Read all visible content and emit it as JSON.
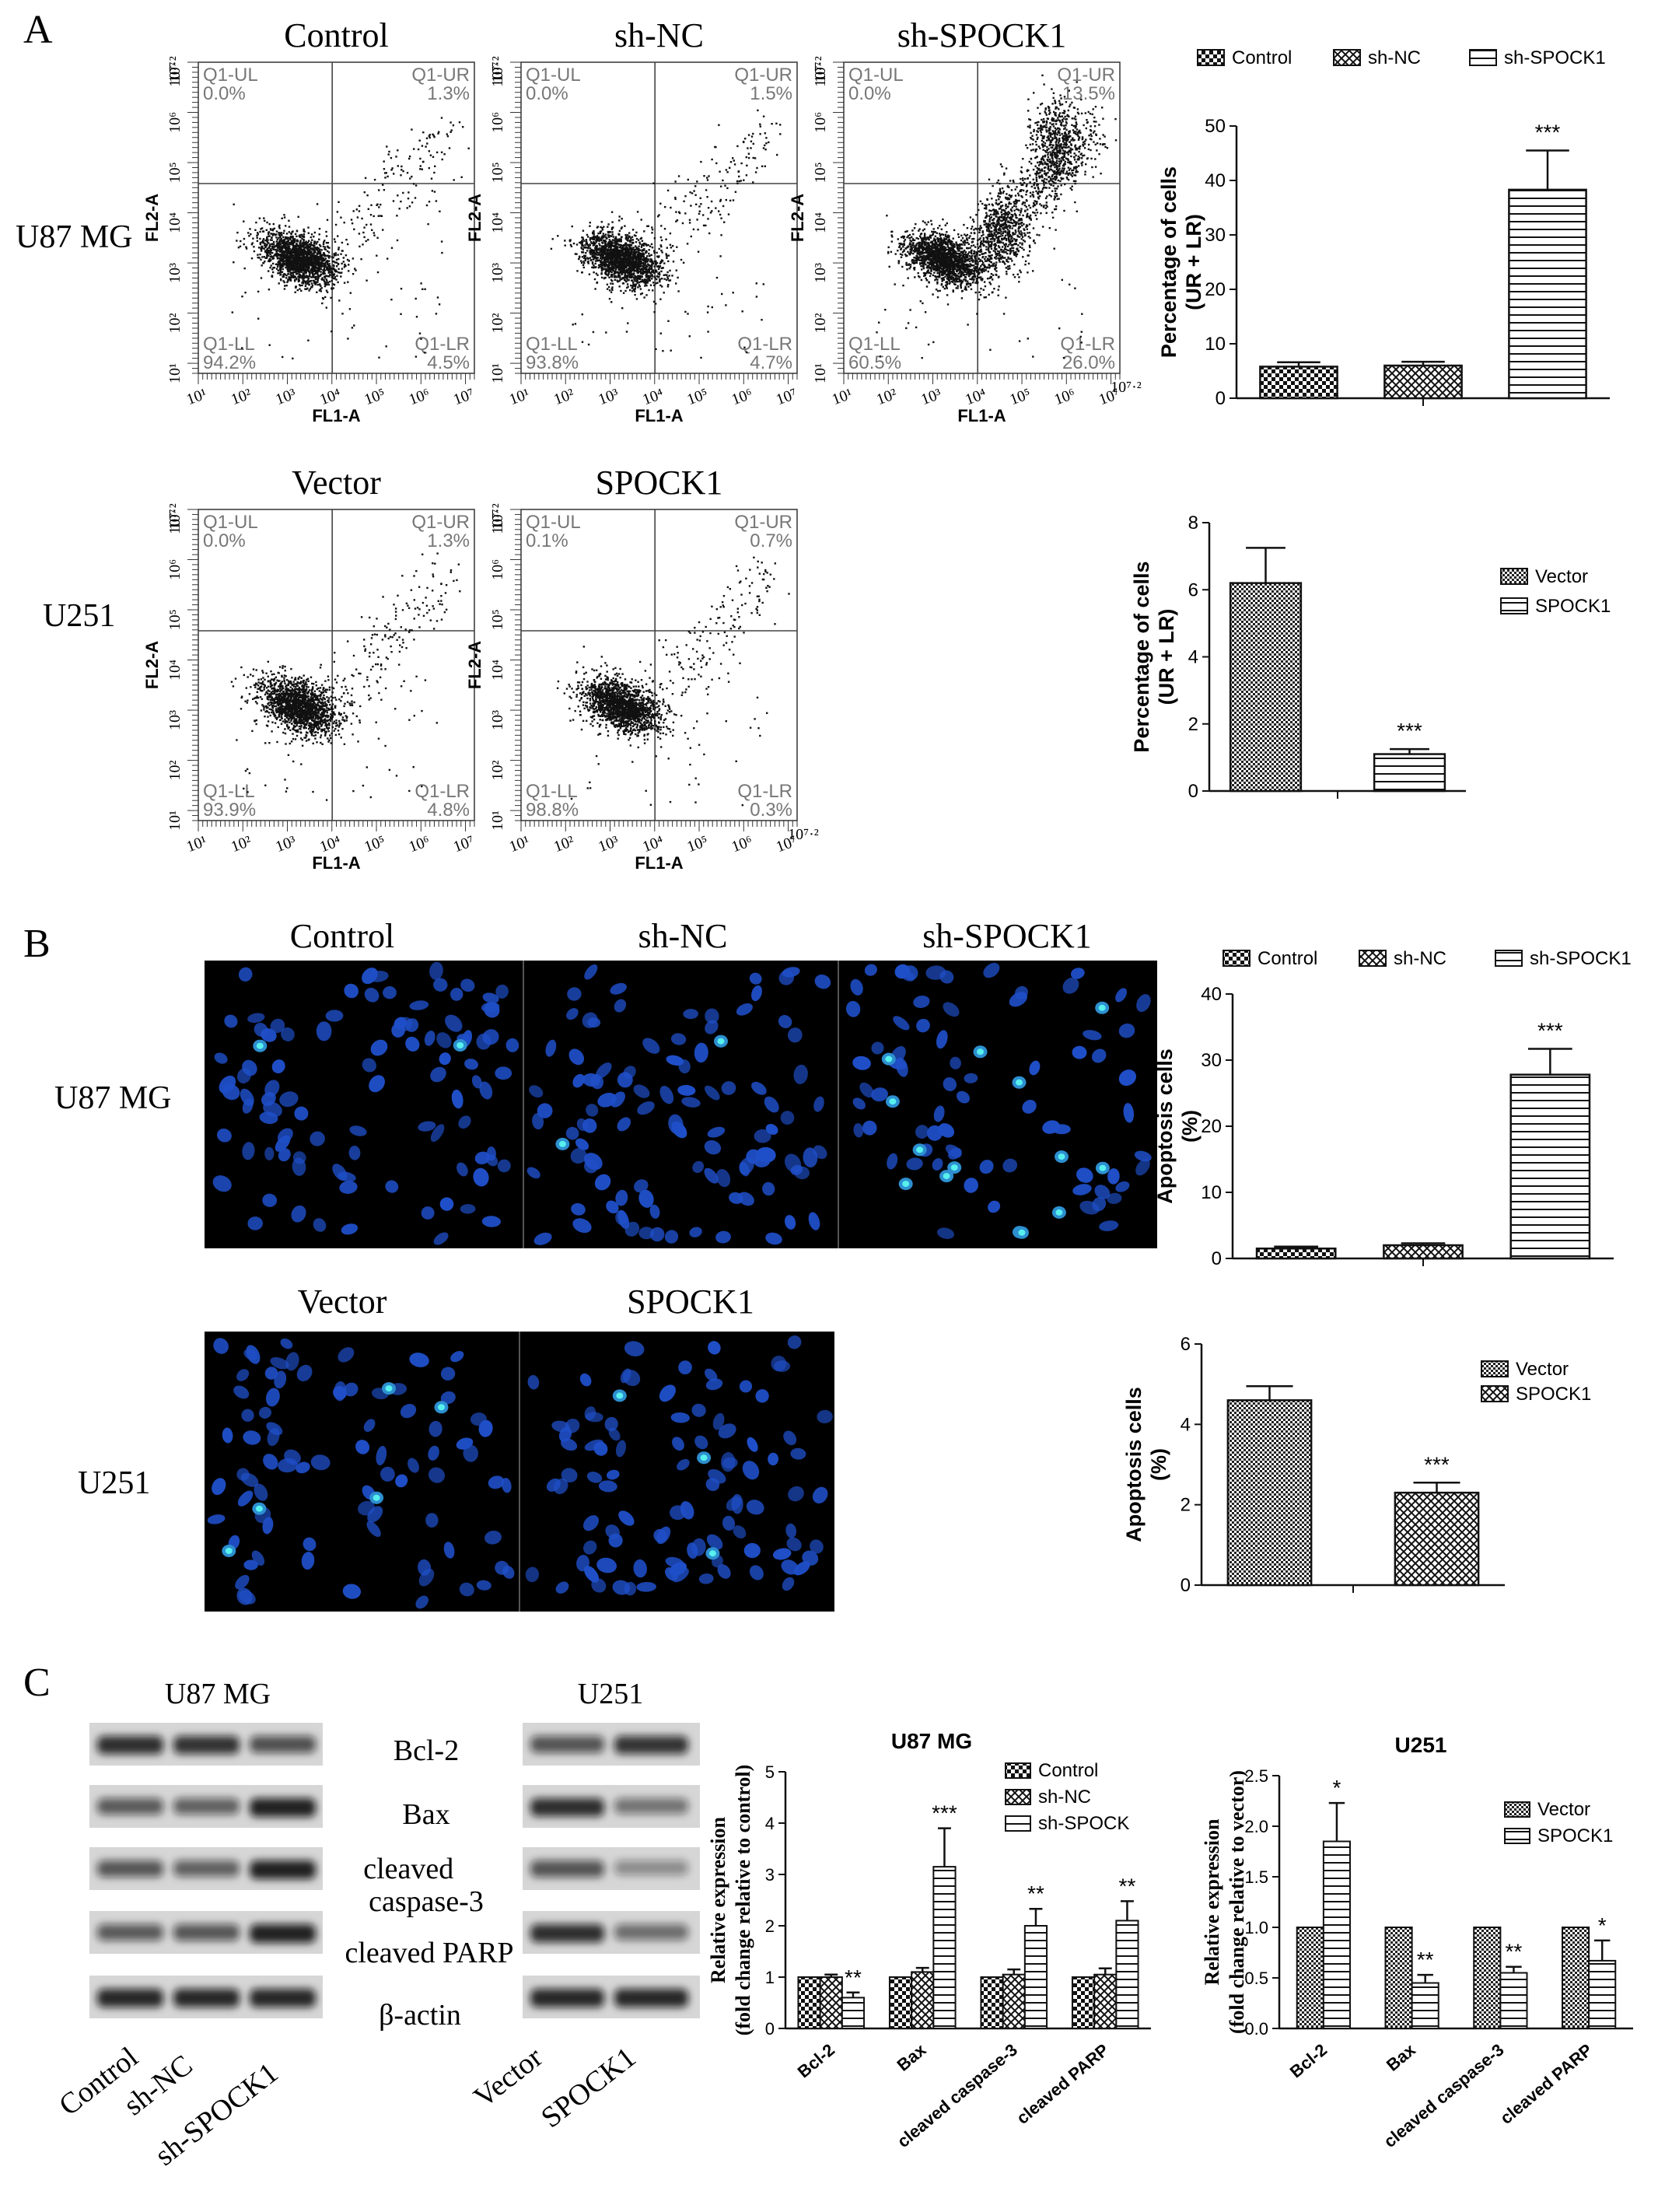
{
  "colors": {
    "ink": "#111111",
    "nucleus": "#1f4fc8",
    "apoptotic": "#57f0ee",
    "micro_bg": "#000000",
    "bar_fill": "#ffffff"
  },
  "panel_labels": [
    "A",
    "B",
    "C"
  ],
  "panelA": {
    "row_labels": [
      "U87 MG",
      "U251"
    ],
    "plot_titles": [
      "Control",
      "sh-NC",
      "sh-SPOCK1",
      "Vector",
      "SPOCK1"
    ],
    "axis": {
      "x_label": "FL1-A",
      "y_label": "FL2-A",
      "x_ticks": [
        "10¹",
        "10²",
        "10³",
        "10⁴",
        "10⁵",
        "10⁶",
        "10⁷"
      ],
      "x_last": "10⁷·²",
      "y_ticks": [
        "10¹",
        "10²",
        "10³",
        "10⁴",
        "10⁵",
        "10⁶",
        "10⁷"
      ],
      "y_last": "10⁷·²"
    },
    "quadrant_names": {
      "ul": "Q1-UL",
      "ur": "Q1-UR",
      "ll": "Q1-LL",
      "lr": "Q1-LR"
    },
    "plots": [
      {
        "title": "Control",
        "ul": "0.0%",
        "ur": "1.3%",
        "ll": "94.2%",
        "lr": "4.5%"
      },
      {
        "title": "sh-NC",
        "ul": "0.0%",
        "ur": "1.5%",
        "ll": "93.8%",
        "lr": "4.7%"
      },
      {
        "title": "sh-SPOCK1",
        "ul": "0.0%",
        "ur": "13.5%",
        "ll": "60.5%",
        "lr": "26.0%"
      },
      {
        "title": "Vector",
        "ul": "0.0%",
        "ur": "1.3%",
        "ll": "93.9%",
        "lr": "4.8%"
      },
      {
        "title": "SPOCK1",
        "ul": "0.1%",
        "ur": "0.7%",
        "ll": "98.8%",
        "lr": "0.3%"
      }
    ]
  },
  "panelB": {
    "row_labels": [
      "U87 MG",
      "U251"
    ],
    "image_titles": [
      "Control",
      "sh-NC",
      "sh-SPOCK1",
      "Vector",
      "SPOCK1"
    ]
  },
  "panelC": {
    "blot_headers": [
      "U87 MG",
      "U251"
    ],
    "proteins": [
      "Bcl-2",
      "Bax",
      "cleaved caspase-3",
      "cleaved PARP",
      "β-actin"
    ],
    "lanes_left": [
      "Control",
      "sh-NC",
      "sh-SPOCK1"
    ],
    "lanes_right": [
      "Vector",
      "SPOCK1"
    ]
  },
  "chart_data": [
    {
      "type": "bar",
      "categories": [
        "Control",
        "sh-NC",
        "sh-SPOCK1"
      ],
      "values": [
        5.8,
        6.0,
        38.3
      ],
      "errors": [
        0.8,
        0.7,
        7.2
      ],
      "ylabel": "Percentage of cells (UR + LR)",
      "ylim": [
        0,
        50
      ],
      "yticks": [
        0,
        10,
        20,
        30,
        40,
        50
      ],
      "legend": [
        "Control",
        "sh-NC",
        "sh-SPOCK1"
      ],
      "legend_position": "top",
      "significance": [
        "",
        "",
        "***"
      ]
    },
    {
      "type": "bar",
      "categories": [
        "Vector",
        "SPOCK1"
      ],
      "values": [
        6.2,
        1.1
      ],
      "errors": [
        1.05,
        0.15
      ],
      "ylabel": "Percentage of cells (UR + LR)",
      "ylim": [
        0,
        8
      ],
      "yticks": [
        0,
        2,
        4,
        6,
        8
      ],
      "legend": [
        "Vector",
        "SPOCK1"
      ],
      "legend_position": "right",
      "significance": [
        "",
        "***"
      ]
    },
    {
      "type": "bar",
      "categories": [
        "Control",
        "sh-NC",
        "sh-SPOCK1"
      ],
      "values": [
        1.5,
        2.0,
        27.8
      ],
      "errors": [
        0.3,
        0.3,
        3.9
      ],
      "ylabel": "Apoptosis cells (%)",
      "ylim": [
        0,
        40
      ],
      "yticks": [
        0,
        10,
        20,
        30,
        40
      ],
      "legend": [
        "Control",
        "sh-NC",
        "sh-SPOCK1"
      ],
      "legend_position": "top",
      "significance": [
        "",
        "",
        "***"
      ]
    },
    {
      "type": "bar",
      "categories": [
        "Vector",
        "SPOCK1"
      ],
      "values": [
        4.6,
        2.3
      ],
      "errors": [
        0.35,
        0.25
      ],
      "ylabel": "Apoptosis cells (%)",
      "ylim": [
        0,
        6
      ],
      "yticks": [
        0,
        2,
        4,
        6
      ],
      "legend": [
        "Vector",
        "SPOCK1"
      ],
      "legend_position": "right",
      "significance": [
        "",
        "***"
      ]
    },
    {
      "type": "bar",
      "title": "U87 MG",
      "categories": [
        "Bcl-2",
        "Bax",
        "cleaved caspase-3",
        "cleaved PARP"
      ],
      "series": [
        {
          "name": "Control",
          "values": [
            1.0,
            1.0,
            1.0,
            1.0
          ],
          "errors": [
            0,
            0,
            0,
            0
          ]
        },
        {
          "name": "sh-NC",
          "values": [
            1.0,
            1.1,
            1.05,
            1.05
          ],
          "errors": [
            0.05,
            0.08,
            0.1,
            0.12
          ]
        },
        {
          "name": "sh-SPOCK",
          "values": [
            0.6,
            3.15,
            2.0,
            2.1
          ],
          "errors": [
            0.1,
            0.75,
            0.33,
            0.38
          ]
        }
      ],
      "ylabel": "Relative expression (fold change relative to control)",
      "ylim": [
        0,
        5
      ],
      "yticks": [
        0,
        1,
        2,
        3,
        4,
        5
      ],
      "legend_position": "top-right",
      "significance": [
        "**",
        "***",
        "**",
        "**"
      ]
    },
    {
      "type": "bar",
      "title": "U251",
      "categories": [
        "Bcl-2",
        "Bax",
        "cleaved caspase-3",
        "cleaved PARP"
      ],
      "series": [
        {
          "name": "Vector",
          "values": [
            1.0,
            1.0,
            1.0,
            1.0
          ],
          "errors": [
            0,
            0,
            0,
            0
          ]
        },
        {
          "name": "SPOCK1",
          "values": [
            1.85,
            0.45,
            0.55,
            0.67
          ],
          "errors": [
            0.38,
            0.08,
            0.06,
            0.2
          ]
        }
      ],
      "ylabel": "Relative expression (fold change relative to vector)",
      "ylim": [
        0,
        2.5
      ],
      "yticks": [
        0.0,
        0.5,
        1.0,
        1.5,
        2.0,
        2.5
      ],
      "legend_position": "top-right",
      "significance": [
        "*",
        "**",
        "**",
        "*"
      ]
    }
  ]
}
